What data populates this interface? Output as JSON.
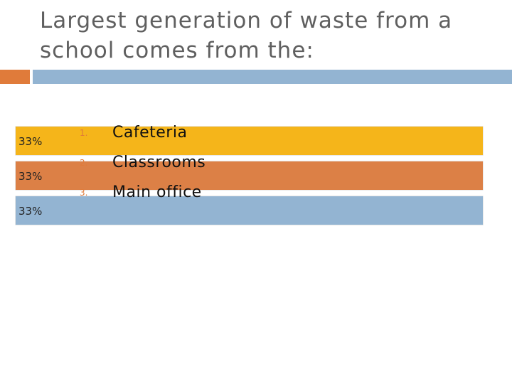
{
  "slide": {
    "title": "Largest generation of waste from a school comes from the:",
    "options": [
      {
        "number": "1.",
        "label": "Cafeteria"
      },
      {
        "number": "2.",
        "label": "Classrooms"
      },
      {
        "number": "3.",
        "label": "Main office"
      }
    ]
  },
  "colors": {
    "title_text": "#5f5f5f",
    "accent_orange": "#e07b3a",
    "accent_blue": "#93b4d2",
    "option_number": "#e07b3a"
  },
  "chart_data": {
    "type": "bar",
    "orientation": "horizontal",
    "categories": [
      "Cafeteria",
      "Classrooms",
      "Main office"
    ],
    "values": [
      33,
      33,
      33
    ],
    "value_labels": [
      "33%",
      "33%",
      "33%"
    ],
    "colors": [
      "#f5b51a",
      "#dc8046",
      "#93b4d2"
    ],
    "xlim": [
      0,
      33
    ],
    "grid": false,
    "legend": "none",
    "title": "",
    "xlabel": "",
    "ylabel": ""
  }
}
